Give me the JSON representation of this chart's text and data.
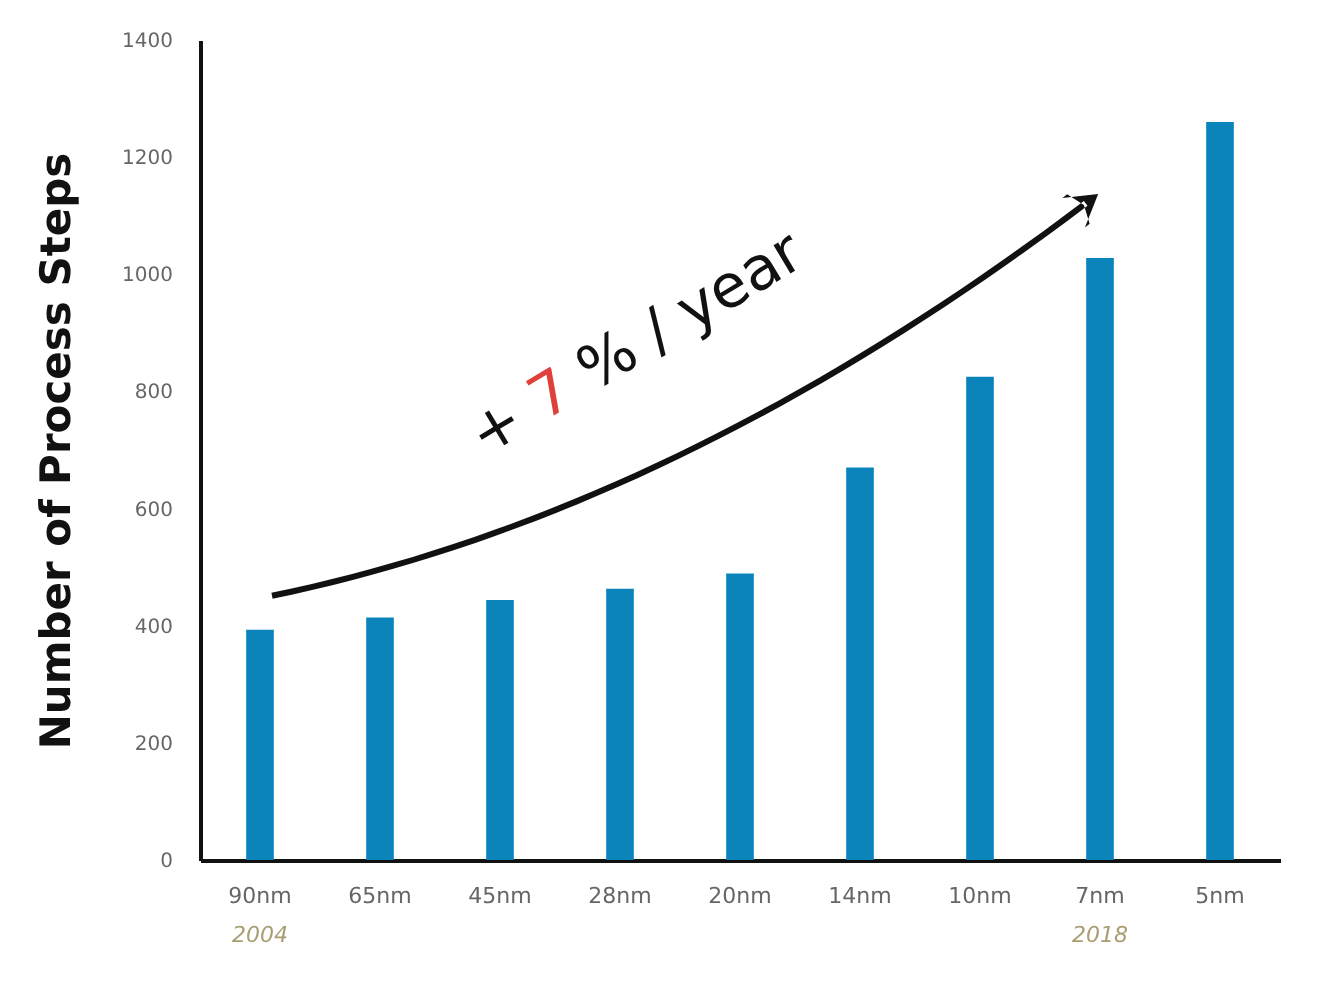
{
  "chart_data": {
    "type": "bar",
    "ylabel": "Number of Process Steps",
    "categories": [
      "90nm",
      "65nm",
      "45nm",
      "28nm",
      "20nm",
      "14nm",
      "10nm",
      "7nm",
      "5nm"
    ],
    "values": [
      393,
      414,
      444,
      463,
      489,
      670,
      825,
      1028,
      1260
    ],
    "color": "#0a84bb",
    "ylim": [
      0,
      1400
    ],
    "yticks": [
      0,
      200,
      400,
      600,
      800,
      1000,
      1200,
      1400
    ],
    "grid": false,
    "annotations": [
      "2004",
      "2018",
      "+ 7 % / year"
    ]
  }
}
